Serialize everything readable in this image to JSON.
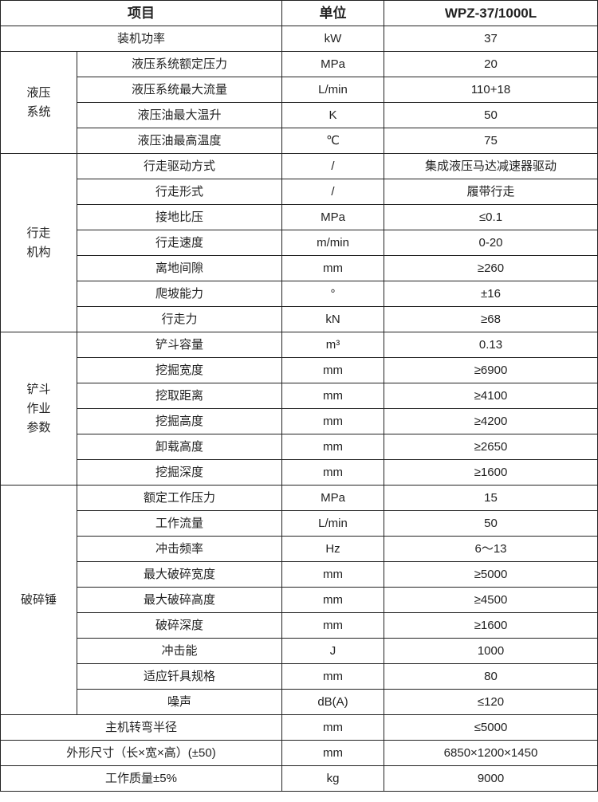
{
  "header": {
    "item": "项目",
    "unit": "单位",
    "model": "WPZ-37/1000L"
  },
  "rows": [
    {
      "type": "single",
      "item": "装机功率",
      "unit": "kW",
      "value": "37"
    },
    {
      "type": "group",
      "name": "液压\n系统",
      "items": [
        {
          "item": "液压系统额定压力",
          "unit": "MPa",
          "value": "20"
        },
        {
          "item": "液压系统最大流量",
          "unit": "L/min",
          "value": "110+18"
        },
        {
          "item": "液压油最大温升",
          "unit": "K",
          "value": "50"
        },
        {
          "item": "液压油最高温度",
          "unit": "℃",
          "value": "75"
        }
      ]
    },
    {
      "type": "group",
      "name": "行走\n机构",
      "items": [
        {
          "item": "行走驱动方式",
          "unit": "/",
          "value": "集成液压马达减速器驱动"
        },
        {
          "item": "行走形式",
          "unit": "/",
          "value": "履带行走"
        },
        {
          "item": "接地比压",
          "unit": "MPa",
          "value": "≤0.1"
        },
        {
          "item": "行走速度",
          "unit": "m/min",
          "value": "0-20"
        },
        {
          "item": "离地间隙",
          "unit": "mm",
          "value": "≥260"
        },
        {
          "item": "爬坡能力",
          "unit": "°",
          "value": "±16"
        },
        {
          "item": "行走力",
          "unit": "kN",
          "value": "≥68"
        }
      ]
    },
    {
      "type": "group",
      "name": "铲斗\n作业\n参数",
      "items": [
        {
          "item": "铲斗容量",
          "unit": "m³",
          "value": "0.13"
        },
        {
          "item": "挖掘宽度",
          "unit": "mm",
          "value": "≥6900"
        },
        {
          "item": "挖取距离",
          "unit": "mm",
          "value": "≥4100"
        },
        {
          "item": "挖掘高度",
          "unit": "mm",
          "value": "≥4200"
        },
        {
          "item": "卸载高度",
          "unit": "mm",
          "value": "≥2650"
        },
        {
          "item": "挖掘深度",
          "unit": "mm",
          "value": "≥1600"
        }
      ]
    },
    {
      "type": "group",
      "name": "破碎锤",
      "items": [
        {
          "item": "额定工作压力",
          "unit": "MPa",
          "value": "15"
        },
        {
          "item": "工作流量",
          "unit": "L/min",
          "value": "50"
        },
        {
          "item": "冲击频率",
          "unit": "Hz",
          "value": "6～13"
        },
        {
          "item": "最大破碎宽度",
          "unit": "mm",
          "value": "≥5000"
        },
        {
          "item": "最大破碎高度",
          "unit": "mm",
          "value": "≥4500"
        },
        {
          "item": "破碎深度",
          "unit": "mm",
          "value": "≥1600"
        },
        {
          "item": "冲击能",
          "unit": "J",
          "value": "1000"
        },
        {
          "item": "适应钎具规格",
          "unit": "mm",
          "value": "80"
        },
        {
          "item": "噪声",
          "unit": "dB(A)",
          "value": "≤120"
        }
      ]
    },
    {
      "type": "single",
      "item": "主机转弯半径",
      "unit": "mm",
      "value": "≤5000"
    },
    {
      "type": "single",
      "item": "外形尺寸（长×宽×高）(±50)",
      "unit": "mm",
      "value": "6850×1200×1450"
    },
    {
      "type": "single",
      "item": "工作质量±5%",
      "unit": "kg",
      "value": "9000"
    }
  ]
}
